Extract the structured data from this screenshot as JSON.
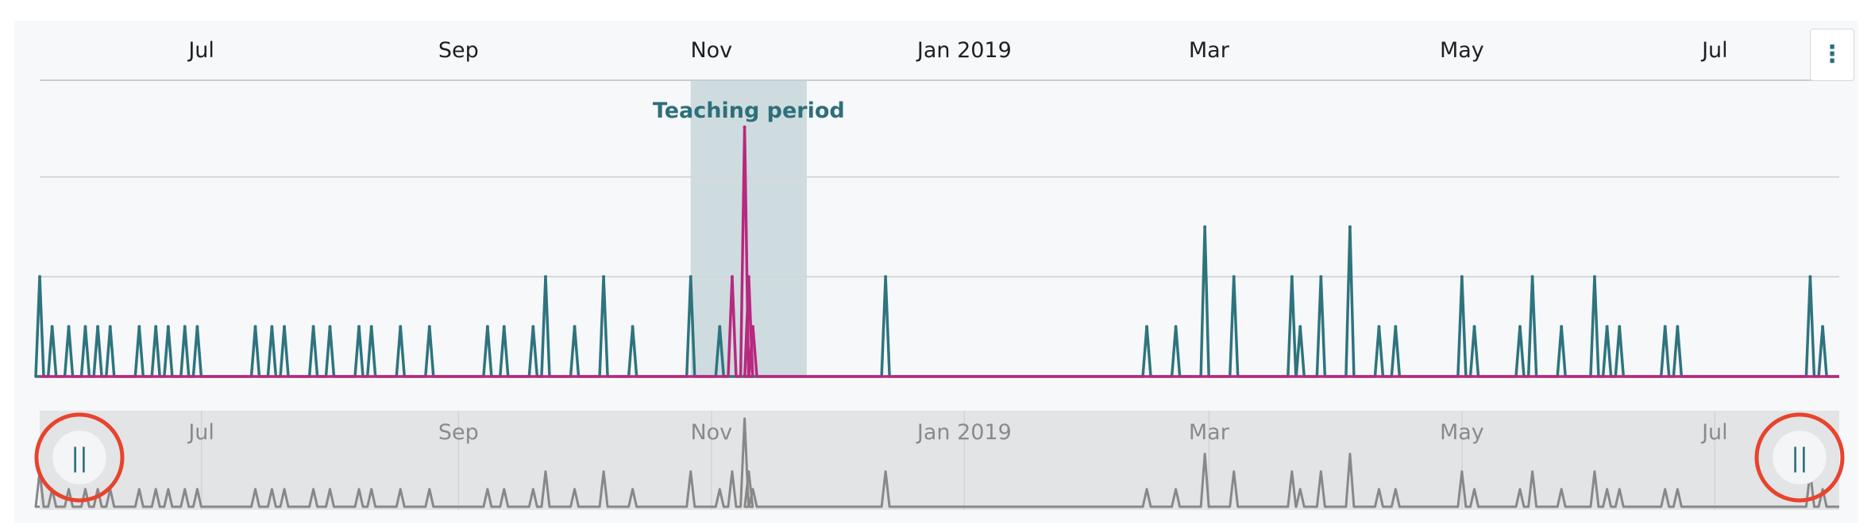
{
  "chart_data": {
    "type": "line",
    "x_axis_type": "datetime",
    "x_range": [
      "2018-05-23",
      "2019-07-31"
    ],
    "x_ticks": [
      {
        "label": "Jul",
        "date": "2018-07-01"
      },
      {
        "label": "Sep",
        "date": "2018-09-01"
      },
      {
        "label": "Nov",
        "date": "2018-11-01"
      },
      {
        "label": "Jan 2019",
        "date": "2019-01-01"
      },
      {
        "label": "Mar",
        "date": "2019-03-01"
      },
      {
        "label": "May",
        "date": "2019-05-01"
      },
      {
        "label": "Jul",
        "date": "2019-07-01"
      }
    ],
    "ylim": [
      0,
      2.5
    ],
    "gridlines_y": [
      1,
      2
    ],
    "y_axis_labels_visible": false,
    "plot_bands": [
      {
        "label": "Teaching period",
        "from": "2018-10-27",
        "to": "2018-11-24",
        "color": "#2e6f7a"
      }
    ],
    "series": [
      {
        "color": "#2e747e",
        "points": [
          [
            "2018-05-23",
            1
          ],
          [
            "2018-05-26",
            0.5
          ],
          [
            "2018-05-30",
            0.5
          ],
          [
            "2018-06-03",
            0.5
          ],
          [
            "2018-06-06",
            0.5
          ],
          [
            "2018-06-09",
            0.5
          ],
          [
            "2018-06-16",
            0.5
          ],
          [
            "2018-06-20",
            0.5
          ],
          [
            "2018-06-23",
            0.5
          ],
          [
            "2018-06-27",
            0.5
          ],
          [
            "2018-06-30",
            0.5
          ],
          [
            "2018-07-14",
            0.5
          ],
          [
            "2018-07-18",
            0.5
          ],
          [
            "2018-07-21",
            0.5
          ],
          [
            "2018-07-28",
            0.5
          ],
          [
            "2018-08-01",
            0.5
          ],
          [
            "2018-08-08",
            0.5
          ],
          [
            "2018-08-11",
            0.5
          ],
          [
            "2018-08-18",
            0.5
          ],
          [
            "2018-08-25",
            0.5
          ],
          [
            "2018-09-08",
            0.5
          ],
          [
            "2018-09-12",
            0.5
          ],
          [
            "2018-09-19",
            0.5
          ],
          [
            "2018-09-22",
            1
          ],
          [
            "2018-09-29",
            0.5
          ],
          [
            "2018-10-06",
            1
          ],
          [
            "2018-10-13",
            0.5
          ],
          [
            "2018-10-27",
            1
          ],
          [
            "2018-11-03",
            0.5
          ],
          [
            "2018-12-13",
            1
          ],
          [
            "2019-02-14",
            0.5
          ],
          [
            "2019-02-21",
            0.5
          ],
          [
            "2019-02-28",
            1.5
          ],
          [
            "2019-03-07",
            1
          ],
          [
            "2019-03-21",
            1
          ],
          [
            "2019-03-23",
            0.5
          ],
          [
            "2019-03-28",
            1
          ],
          [
            "2019-04-04",
            1.5
          ],
          [
            "2019-04-11",
            0.5
          ],
          [
            "2019-04-15",
            0.5
          ],
          [
            "2019-05-01",
            1
          ],
          [
            "2019-05-04",
            0.5
          ],
          [
            "2019-05-15",
            0.5
          ],
          [
            "2019-05-18",
            1
          ],
          [
            "2019-05-25",
            0.5
          ],
          [
            "2019-06-02",
            1
          ],
          [
            "2019-06-05",
            0.5
          ],
          [
            "2019-06-08",
            0.5
          ],
          [
            "2019-06-19",
            0.5
          ],
          [
            "2019-06-22",
            0.5
          ],
          [
            "2019-07-24",
            1
          ],
          [
            "2019-07-27",
            0.5
          ]
        ]
      },
      {
        "color": "#b8287f",
        "points": [
          [
            "2018-11-06",
            1
          ],
          [
            "2018-11-09",
            2.5
          ],
          [
            "2018-11-10",
            1
          ],
          [
            "2018-11-11",
            0.5
          ]
        ]
      }
    ],
    "navigator": {
      "line_color": "#888888",
      "selection": [
        "2018-05-23",
        "2019-07-31"
      ],
      "handle_glyph": "||",
      "handle_color": "#2e6f7a",
      "handle_annotation_color": "#e8432d"
    }
  },
  "menu": {
    "icon": "vertical-ellipsis-icon",
    "glyph": "⋮"
  }
}
